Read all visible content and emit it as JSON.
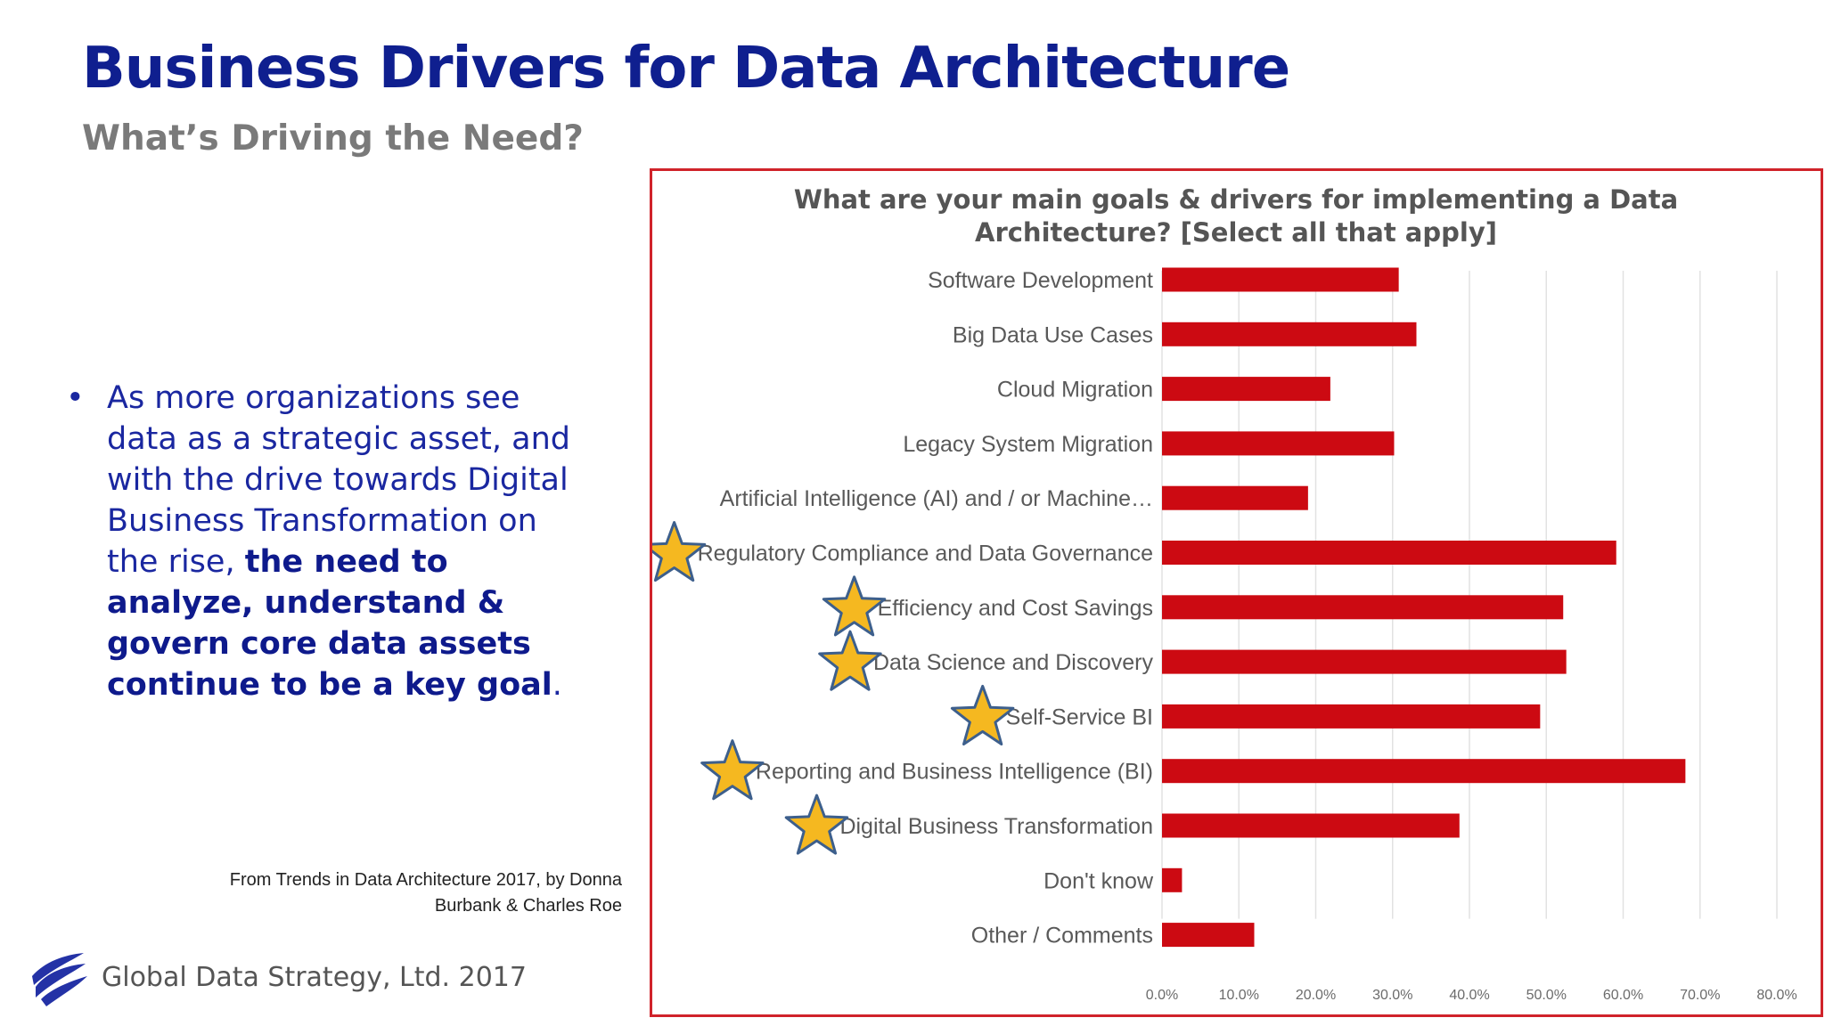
{
  "slide": {
    "title": "Business Drivers for Data Architecture",
    "subtitle": "What’s Driving the Need?",
    "bullet": {
      "normal_text": "As more organizations see data as a strategic asset, and with the drive towards Digital Business Transformation on the rise,",
      "bold_text": "the need to analyze, understand & govern core data assets continue to be a key goal",
      "end_text": "."
    },
    "source_line1": "From Trends in Data Architecture 2017, by Donna",
    "source_line2": "Burbank & Charles Roe",
    "footer_text": "Global Data Strategy, Ltd. 2017"
  },
  "colors": {
    "title": "#0f1f8f",
    "bar": "#cc0a12",
    "frame": "#d0232a",
    "star_fill": "#f5b820",
    "star_stroke": "#3d5f8c"
  },
  "chart_data": {
    "type": "bar",
    "orientation": "horizontal",
    "title_line1": "What are your main goals & drivers for implementing  a Data",
    "title_line2": "Architecture?  [Select all that apply]",
    "categories": [
      "Software Development",
      "Big Data Use Cases",
      "Cloud Migration",
      "Legacy System Migration",
      "Artificial Intelligence (AI) and / or Machine…",
      "Regulatory Compliance and Data Governance",
      "Efficiency and Cost Savings",
      "Data Science and Discovery",
      "Self-Service BI",
      "Reporting and Business Intelligence (BI)",
      "Digital Business Transformation",
      "Don't know",
      "Other / Comments"
    ],
    "values": [
      0.308,
      0.331,
      0.219,
      0.302,
      0.19,
      0.591,
      0.522,
      0.526,
      0.492,
      0.681,
      0.387,
      0.026,
      0.12
    ],
    "starred": [
      false,
      false,
      false,
      false,
      false,
      true,
      true,
      true,
      true,
      true,
      true,
      false,
      false
    ],
    "xlim": [
      0,
      0.8
    ],
    "x_ticks": [
      "0.0%",
      "10.0%",
      "20.0%",
      "30.0%",
      "40.0%",
      "50.0%",
      "60.0%",
      "70.0%",
      "80.0%"
    ],
    "grid": true
  }
}
